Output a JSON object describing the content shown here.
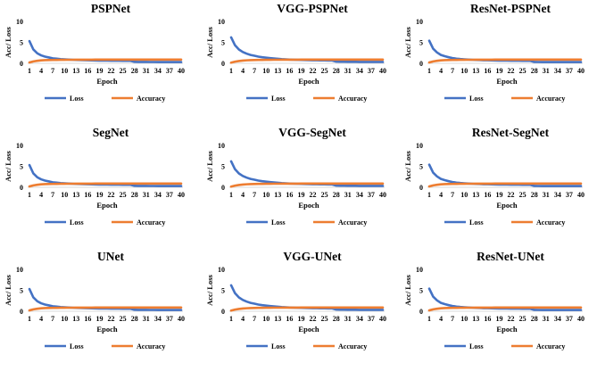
{
  "colors": {
    "loss": "#4472C4",
    "accuracy": "#ED7D31",
    "axis": "#D9D9D9"
  },
  "chart_data": [
    {
      "type": "line",
      "title": "PSPNet",
      "xlabel": "Epoch",
      "ylabel": "Acc/ Loss",
      "ylim": [
        0,
        10
      ],
      "yticks": [
        "0",
        "5",
        "10"
      ],
      "x_tick_labels": [
        "1",
        "4",
        "7",
        "10",
        "13",
        "16",
        "19",
        "22",
        "25",
        "28",
        "31",
        "34",
        "37",
        "40"
      ],
      "series": [
        {
          "name": "Loss",
          "values": [
            5.3,
            3.3,
            2.4,
            1.9,
            1.6,
            1.4,
            1.2,
            1.1,
            1.0,
            0.95,
            0.9,
            0.85,
            0.8,
            0.78,
            0.75,
            0.72,
            0.7,
            0.68,
            0.66,
            0.65,
            0.64,
            0.63,
            0.62,
            0.61,
            0.6,
            0.6,
            0.59,
            0.35,
            0.34,
            0.33,
            0.33,
            0.32,
            0.32,
            0.31,
            0.31,
            0.3,
            0.3,
            0.3,
            0.3,
            0.3
          ]
        },
        {
          "name": "Accuracy",
          "values": [
            0.2,
            0.45,
            0.6,
            0.7,
            0.75,
            0.78,
            0.8,
            0.82,
            0.83,
            0.84,
            0.85,
            0.85,
            0.86,
            0.86,
            0.87,
            0.87,
            0.87,
            0.88,
            0.88,
            0.88,
            0.88,
            0.88,
            0.89,
            0.89,
            0.89,
            0.89,
            0.89,
            0.9,
            0.9,
            0.9,
            0.9,
            0.9,
            0.9,
            0.9,
            0.9,
            0.9,
            0.9,
            0.9,
            0.9,
            0.9
          ]
        }
      ]
    },
    {
      "type": "line",
      "title": "VGG-PSPNet",
      "xlabel": "Epoch",
      "ylabel": "Acc/ Loss",
      "ylim": [
        0,
        10
      ],
      "yticks": [
        "0",
        "5",
        "10"
      ],
      "x_tick_labels": [
        "1",
        "4",
        "7",
        "10",
        "13",
        "16",
        "19",
        "22",
        "25",
        "28",
        "31",
        "34",
        "37",
        "40"
      ],
      "series": [
        {
          "name": "Loss",
          "values": [
            6.2,
            4.3,
            3.3,
            2.7,
            2.3,
            2.0,
            1.8,
            1.6,
            1.45,
            1.35,
            1.25,
            1.15,
            1.07,
            1.0,
            0.95,
            0.9,
            0.86,
            0.83,
            0.8,
            0.78,
            0.76,
            0.74,
            0.72,
            0.7,
            0.69,
            0.68,
            0.67,
            0.4,
            0.38,
            0.37,
            0.36,
            0.35,
            0.35,
            0.34,
            0.34,
            0.33,
            0.33,
            0.33,
            0.33,
            0.33
          ]
        },
        {
          "name": "Accuracy",
          "values": [
            0.15,
            0.4,
            0.55,
            0.65,
            0.72,
            0.76,
            0.79,
            0.81,
            0.82,
            0.83,
            0.84,
            0.85,
            0.85,
            0.86,
            0.86,
            0.87,
            0.87,
            0.87,
            0.88,
            0.88,
            0.88,
            0.88,
            0.89,
            0.89,
            0.89,
            0.89,
            0.89,
            0.9,
            0.9,
            0.9,
            0.9,
            0.9,
            0.9,
            0.9,
            0.9,
            0.9,
            0.9,
            0.9,
            0.9,
            0.9
          ]
        }
      ]
    },
    {
      "type": "line",
      "title": "ResNet-PSPNet",
      "xlabel": "Epoch",
      "ylabel": "Acc/ Loss",
      "ylim": [
        0,
        10
      ],
      "yticks": [
        "0",
        "5",
        "10"
      ],
      "x_tick_labels": [
        "1",
        "4",
        "7",
        "10",
        "13",
        "16",
        "19",
        "22",
        "25",
        "28",
        "31",
        "34",
        "37",
        "40"
      ],
      "series": [
        {
          "name": "Loss",
          "values": [
            5.4,
            3.5,
            2.6,
            2.0,
            1.7,
            1.45,
            1.25,
            1.12,
            1.02,
            0.95,
            0.9,
            0.85,
            0.8,
            0.77,
            0.74,
            0.72,
            0.7,
            0.68,
            0.66,
            0.65,
            0.64,
            0.63,
            0.62,
            0.61,
            0.6,
            0.6,
            0.59,
            0.33,
            0.32,
            0.31,
            0.31,
            0.3,
            0.3,
            0.3,
            0.3,
            0.3,
            0.3,
            0.3,
            0.3,
            0.3
          ]
        },
        {
          "name": "Accuracy",
          "values": [
            0.2,
            0.45,
            0.6,
            0.7,
            0.75,
            0.78,
            0.8,
            0.82,
            0.83,
            0.84,
            0.85,
            0.85,
            0.86,
            0.86,
            0.87,
            0.87,
            0.87,
            0.88,
            0.88,
            0.88,
            0.88,
            0.88,
            0.89,
            0.89,
            0.89,
            0.89,
            0.89,
            0.9,
            0.9,
            0.9,
            0.9,
            0.9,
            0.9,
            0.9,
            0.9,
            0.9,
            0.9,
            0.9,
            0.9,
            0.9
          ]
        }
      ]
    },
    {
      "type": "line",
      "title": "SegNet",
      "xlabel": "Epoch",
      "ylabel": "Acc/ Loss",
      "ylim": [
        0,
        10
      ],
      "yticks": [
        "0",
        "5",
        "10"
      ],
      "x_tick_labels": [
        "1",
        "4",
        "7",
        "10",
        "13",
        "16",
        "19",
        "22",
        "25",
        "28",
        "31",
        "34",
        "37",
        "40"
      ],
      "series": [
        {
          "name": "Loss",
          "values": [
            5.3,
            3.3,
            2.4,
            1.9,
            1.6,
            1.4,
            1.2,
            1.1,
            1.0,
            0.95,
            0.9,
            0.85,
            0.8,
            0.78,
            0.75,
            0.72,
            0.7,
            0.68,
            0.66,
            0.65,
            0.64,
            0.63,
            0.62,
            0.61,
            0.6,
            0.6,
            0.59,
            0.35,
            0.34,
            0.33,
            0.33,
            0.32,
            0.32,
            0.31,
            0.31,
            0.3,
            0.3,
            0.3,
            0.3,
            0.3
          ]
        },
        {
          "name": "Accuracy",
          "values": [
            0.2,
            0.45,
            0.6,
            0.7,
            0.75,
            0.78,
            0.8,
            0.82,
            0.83,
            0.84,
            0.85,
            0.85,
            0.86,
            0.86,
            0.87,
            0.87,
            0.87,
            0.88,
            0.88,
            0.88,
            0.88,
            0.88,
            0.89,
            0.89,
            0.89,
            0.89,
            0.89,
            0.9,
            0.9,
            0.9,
            0.9,
            0.9,
            0.9,
            0.9,
            0.9,
            0.9,
            0.9,
            0.9,
            0.9,
            0.9
          ]
        }
      ]
    },
    {
      "type": "line",
      "title": "VGG-SegNet",
      "xlabel": "Epoch",
      "ylabel": "Acc/ Loss",
      "ylim": [
        0,
        10
      ],
      "yticks": [
        "0",
        "5",
        "10"
      ],
      "x_tick_labels": [
        "1",
        "4",
        "7",
        "10",
        "13",
        "16",
        "19",
        "22",
        "25",
        "28",
        "31",
        "34",
        "37",
        "40"
      ],
      "series": [
        {
          "name": "Loss",
          "values": [
            6.2,
            4.3,
            3.3,
            2.7,
            2.3,
            2.0,
            1.8,
            1.6,
            1.45,
            1.35,
            1.25,
            1.15,
            1.07,
            1.0,
            0.95,
            0.9,
            0.86,
            0.83,
            0.8,
            0.78,
            0.76,
            0.74,
            0.72,
            0.7,
            0.69,
            0.68,
            0.67,
            0.4,
            0.38,
            0.37,
            0.36,
            0.35,
            0.35,
            0.34,
            0.34,
            0.33,
            0.33,
            0.33,
            0.33,
            0.33
          ]
        },
        {
          "name": "Accuracy",
          "values": [
            0.15,
            0.4,
            0.55,
            0.65,
            0.72,
            0.76,
            0.79,
            0.81,
            0.82,
            0.83,
            0.84,
            0.85,
            0.85,
            0.86,
            0.86,
            0.87,
            0.87,
            0.87,
            0.88,
            0.88,
            0.88,
            0.88,
            0.89,
            0.89,
            0.89,
            0.89,
            0.89,
            0.9,
            0.9,
            0.9,
            0.9,
            0.9,
            0.9,
            0.9,
            0.9,
            0.9,
            0.9,
            0.9,
            0.9,
            0.9
          ]
        }
      ]
    },
    {
      "type": "line",
      "title": "ResNet-SegNet",
      "xlabel": "Epoch",
      "ylabel": "Acc/ Loss",
      "ylim": [
        0,
        10
      ],
      "yticks": [
        "0",
        "5",
        "10"
      ],
      "x_tick_labels": [
        "1",
        "4",
        "7",
        "10",
        "13",
        "16",
        "19",
        "22",
        "25",
        "28",
        "31",
        "34",
        "37",
        "40"
      ],
      "series": [
        {
          "name": "Loss",
          "values": [
            5.4,
            3.5,
            2.6,
            2.0,
            1.7,
            1.45,
            1.25,
            1.12,
            1.02,
            0.95,
            0.9,
            0.85,
            0.8,
            0.77,
            0.74,
            0.72,
            0.7,
            0.68,
            0.66,
            0.65,
            0.64,
            0.63,
            0.62,
            0.61,
            0.6,
            0.6,
            0.59,
            0.33,
            0.32,
            0.31,
            0.31,
            0.3,
            0.3,
            0.3,
            0.3,
            0.3,
            0.3,
            0.3,
            0.3,
            0.3
          ]
        },
        {
          "name": "Accuracy",
          "values": [
            0.2,
            0.45,
            0.6,
            0.7,
            0.75,
            0.78,
            0.8,
            0.82,
            0.83,
            0.84,
            0.85,
            0.85,
            0.86,
            0.86,
            0.87,
            0.87,
            0.87,
            0.88,
            0.88,
            0.88,
            0.88,
            0.88,
            0.89,
            0.89,
            0.89,
            0.89,
            0.89,
            0.9,
            0.9,
            0.9,
            0.9,
            0.9,
            0.9,
            0.9,
            0.9,
            0.9,
            0.9,
            0.9,
            0.9,
            0.9
          ]
        }
      ]
    },
    {
      "type": "line",
      "title": "UNet",
      "xlabel": "Epoch",
      "ylabel": "Acc/ Loss",
      "ylim": [
        0,
        10
      ],
      "yticks": [
        "0",
        "5",
        "10"
      ],
      "x_tick_labels": [
        "1",
        "4",
        "7",
        "10",
        "13",
        "16",
        "19",
        "22",
        "25",
        "28",
        "31",
        "34",
        "37",
        "40"
      ],
      "series": [
        {
          "name": "Loss",
          "values": [
            5.3,
            3.3,
            2.4,
            1.9,
            1.6,
            1.4,
            1.2,
            1.1,
            1.0,
            0.95,
            0.9,
            0.85,
            0.8,
            0.78,
            0.75,
            0.72,
            0.7,
            0.68,
            0.66,
            0.65,
            0.64,
            0.63,
            0.62,
            0.61,
            0.6,
            0.6,
            0.59,
            0.35,
            0.34,
            0.33,
            0.33,
            0.32,
            0.32,
            0.31,
            0.31,
            0.3,
            0.3,
            0.3,
            0.3,
            0.3
          ]
        },
        {
          "name": "Accuracy",
          "values": [
            0.2,
            0.45,
            0.6,
            0.7,
            0.75,
            0.78,
            0.8,
            0.82,
            0.83,
            0.84,
            0.85,
            0.85,
            0.86,
            0.86,
            0.87,
            0.87,
            0.87,
            0.88,
            0.88,
            0.88,
            0.88,
            0.88,
            0.89,
            0.89,
            0.89,
            0.89,
            0.89,
            0.9,
            0.9,
            0.9,
            0.9,
            0.9,
            0.9,
            0.9,
            0.9,
            0.9,
            0.9,
            0.9,
            0.9,
            0.9
          ]
        }
      ]
    },
    {
      "type": "line",
      "title": "VGG-UNet",
      "xlabel": "Epoch",
      "ylabel": "Acc/ Loss",
      "ylim": [
        0,
        10
      ],
      "yticks": [
        "0",
        "5",
        "10"
      ],
      "x_tick_labels": [
        "1",
        "4",
        "7",
        "10",
        "13",
        "16",
        "19",
        "22",
        "25",
        "28",
        "31",
        "34",
        "37",
        "40"
      ],
      "series": [
        {
          "name": "Loss",
          "values": [
            6.2,
            4.3,
            3.3,
            2.7,
            2.3,
            2.0,
            1.8,
            1.6,
            1.45,
            1.35,
            1.25,
            1.15,
            1.07,
            1.0,
            0.95,
            0.9,
            0.86,
            0.83,
            0.8,
            0.78,
            0.76,
            0.74,
            0.72,
            0.7,
            0.69,
            0.68,
            0.67,
            0.4,
            0.38,
            0.37,
            0.36,
            0.35,
            0.35,
            0.34,
            0.34,
            0.33,
            0.33,
            0.33,
            0.33,
            0.33
          ]
        },
        {
          "name": "Accuracy",
          "values": [
            0.15,
            0.4,
            0.55,
            0.65,
            0.72,
            0.76,
            0.79,
            0.81,
            0.82,
            0.83,
            0.84,
            0.85,
            0.85,
            0.86,
            0.86,
            0.87,
            0.87,
            0.87,
            0.88,
            0.88,
            0.88,
            0.88,
            0.89,
            0.89,
            0.89,
            0.89,
            0.89,
            0.9,
            0.9,
            0.9,
            0.9,
            0.9,
            0.9,
            0.9,
            0.9,
            0.9,
            0.9,
            0.9,
            0.9,
            0.9
          ]
        }
      ]
    },
    {
      "type": "line",
      "title": "ResNet-UNet",
      "xlabel": "Epoch",
      "ylabel": "Acc/ Loss",
      "ylim": [
        0,
        10
      ],
      "yticks": [
        "0",
        "5",
        "10"
      ],
      "x_tick_labels": [
        "1",
        "4",
        "7",
        "10",
        "13",
        "16",
        "19",
        "22",
        "25",
        "28",
        "31",
        "34",
        "37",
        "40"
      ],
      "series": [
        {
          "name": "Loss",
          "values": [
            5.4,
            3.5,
            2.6,
            2.0,
            1.7,
            1.45,
            1.25,
            1.12,
            1.02,
            0.95,
            0.9,
            0.85,
            0.8,
            0.77,
            0.74,
            0.72,
            0.7,
            0.68,
            0.66,
            0.65,
            0.64,
            0.63,
            0.62,
            0.61,
            0.6,
            0.6,
            0.59,
            0.33,
            0.32,
            0.31,
            0.31,
            0.3,
            0.3,
            0.3,
            0.3,
            0.3,
            0.3,
            0.3,
            0.3,
            0.3
          ]
        },
        {
          "name": "Accuracy",
          "values": [
            0.2,
            0.45,
            0.6,
            0.7,
            0.75,
            0.78,
            0.8,
            0.82,
            0.83,
            0.84,
            0.85,
            0.85,
            0.86,
            0.86,
            0.87,
            0.87,
            0.87,
            0.88,
            0.88,
            0.88,
            0.88,
            0.88,
            0.89,
            0.89,
            0.89,
            0.89,
            0.89,
            0.9,
            0.9,
            0.9,
            0.9,
            0.9,
            0.9,
            0.9,
            0.9,
            0.9,
            0.9,
            0.9,
            0.9,
            0.9
          ]
        }
      ]
    }
  ]
}
